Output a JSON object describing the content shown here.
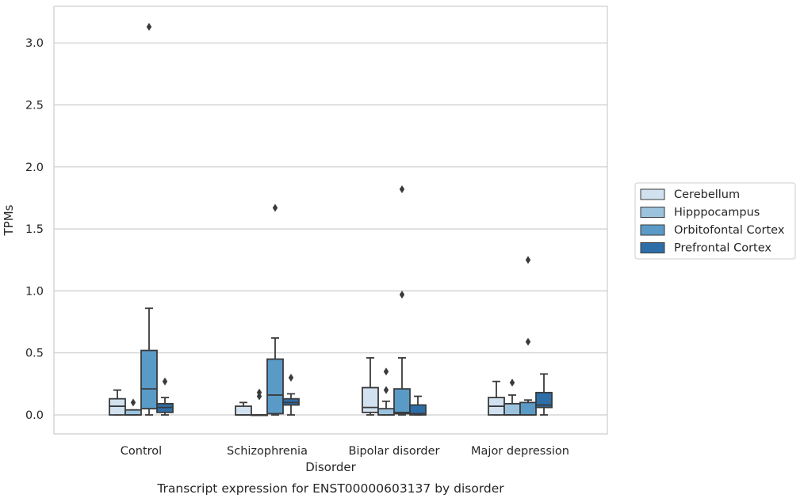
{
  "chart_data": {
    "type": "box",
    "title": "",
    "caption": "Transcript expression for ENST00000603137 by disorder",
    "xlabel": "Disorder",
    "ylabel": "TPMs",
    "ylim": [
      -0.15,
      3.3
    ],
    "yticks": [
      "0.0",
      "0.5",
      "1.0",
      "1.5",
      "2.0",
      "2.5",
      "3.0"
    ],
    "grid": true,
    "legend_position": "right",
    "categories": [
      "Control",
      "Schizophrenia",
      "Bipolar disorder",
      "Major depression"
    ],
    "series": [
      {
        "name": "Cerebellum",
        "color": "#d1e1f0",
        "boxes": [
          {
            "whislo": 0.0,
            "q1": 0.0,
            "med": 0.07,
            "q3": 0.13,
            "whishi": 0.2,
            "fliers": []
          },
          {
            "whislo": 0.0,
            "q1": 0.0,
            "med": 0.0,
            "q3": 0.07,
            "whishi": 0.1,
            "fliers": []
          },
          {
            "whislo": 0.0,
            "q1": 0.02,
            "med": 0.06,
            "q3": 0.22,
            "whishi": 0.46,
            "fliers": []
          },
          {
            "whislo": 0.0,
            "q1": 0.0,
            "med": 0.07,
            "q3": 0.14,
            "whishi": 0.27,
            "fliers": []
          }
        ]
      },
      {
        "name": "Hipppocampus",
        "color": "#9cc3de",
        "boxes": [
          {
            "whislo": 0.0,
            "q1": 0.0,
            "med": 0.0,
            "q3": 0.04,
            "whishi": 0.04,
            "fliers": [
              0.1
            ]
          },
          {
            "whislo": 0.0,
            "q1": 0.0,
            "med": 0.0,
            "q3": 0.0,
            "whishi": 0.0,
            "fliers": [
              0.15,
              0.18
            ]
          },
          {
            "whislo": 0.0,
            "q1": 0.0,
            "med": 0.0,
            "q3": 0.05,
            "whishi": 0.11,
            "fliers": [
              0.2,
              0.35
            ]
          },
          {
            "whislo": 0.0,
            "q1": 0.0,
            "med": 0.0,
            "q3": 0.09,
            "whishi": 0.16,
            "fliers": [
              0.26
            ]
          }
        ]
      },
      {
        "name": "Orbitofontal Cortex",
        "color": "#5a9ac7",
        "boxes": [
          {
            "whislo": 0.0,
            "q1": 0.05,
            "med": 0.21,
            "q3": 0.52,
            "whishi": 0.86,
            "fliers": [
              3.13
            ]
          },
          {
            "whislo": 0.0,
            "q1": 0.01,
            "med": 0.16,
            "q3": 0.45,
            "whishi": 0.62,
            "fliers": [
              1.67
            ]
          },
          {
            "whislo": 0.0,
            "q1": 0.01,
            "med": 0.02,
            "q3": 0.21,
            "whishi": 0.46,
            "fliers": [
              0.97,
              1.82
            ]
          },
          {
            "whislo": 0.0,
            "q1": 0.0,
            "med": 0.0,
            "q3": 0.1,
            "whishi": 0.12,
            "fliers": [
              0.59,
              1.25
            ]
          }
        ]
      },
      {
        "name": "Prefrontal Cortex",
        "color": "#2d6ea9",
        "boxes": [
          {
            "whislo": 0.0,
            "q1": 0.02,
            "med": 0.06,
            "q3": 0.09,
            "whishi": 0.14,
            "fliers": [
              0.27
            ]
          },
          {
            "whislo": 0.0,
            "q1": 0.08,
            "med": 0.1,
            "q3": 0.13,
            "whishi": 0.17,
            "fliers": [
              0.3
            ]
          },
          {
            "whislo": 0.0,
            "q1": 0.0,
            "med": 0.01,
            "q3": 0.08,
            "whishi": 0.15,
            "fliers": []
          },
          {
            "whislo": 0.0,
            "q1": 0.06,
            "med": 0.08,
            "q3": 0.18,
            "whishi": 0.33,
            "fliers": []
          }
        ]
      }
    ]
  }
}
